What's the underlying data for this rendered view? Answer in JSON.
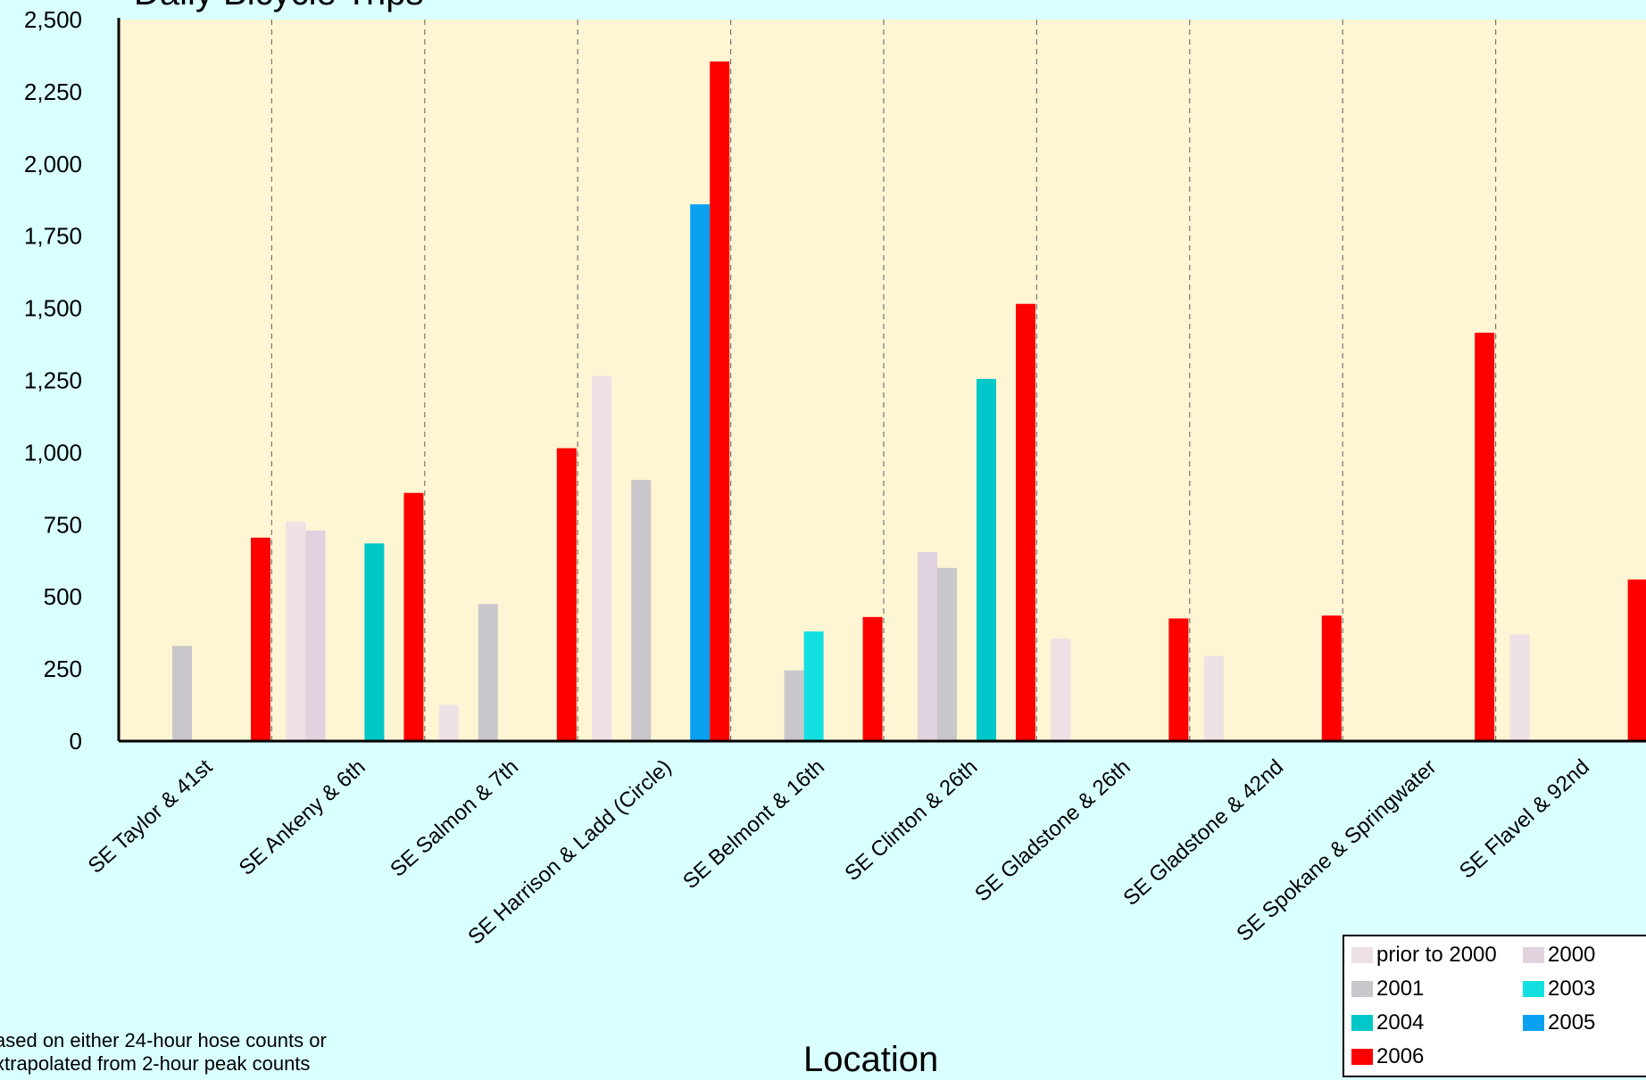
{
  "title_partial": "Daily Bicycle Trips",
  "x_axis_title": "Location",
  "note": [
    "ased on either 24-hour hose counts or",
    "xtrapolated from 2-hour peak counts"
  ],
  "colors": {
    "background": "#d9ffff",
    "plot_area": "#fdf5d3",
    "prior_to_2000": "#ede1e6",
    "y2000": "#e0d3df",
    "y2001": "#c9c7cb",
    "y2003": "#12e0e0",
    "y2004": "#00c8c8",
    "y2005": "#0aa0f0",
    "y2006": "#ff0000"
  },
  "legend": {
    "items": [
      {
        "label": "prior to 2000",
        "color": "#ede1e6"
      },
      {
        "label": "2000",
        "color": "#e0d3df"
      },
      {
        "label": "2001",
        "color": "#c9c7cb"
      },
      {
        "label": "2003",
        "color": "#12e0e0"
      },
      {
        "label": "2004",
        "color": "#00c8c8"
      },
      {
        "label": "2005",
        "color": "#0aa0f0"
      },
      {
        "label": "2006",
        "color": "#ff0000"
      }
    ]
  },
  "chart_data": {
    "type": "bar",
    "title": "",
    "xlabel": "Location",
    "ylabel": "",
    "ylim": [
      0,
      2500
    ],
    "yticks": [
      "0",
      "250",
      "500",
      "750",
      "1,000",
      "1,250",
      "1,500",
      "1,750",
      "2,000",
      "2,250",
      "2,500"
    ],
    "grid": "vertical dashed separators between categories",
    "legend_position": "bottom-right",
    "categories": [
      "SE Taylor & 41st",
      "SE Ankeny & 6th",
      "SE Salmon & 7th",
      "SE Harrison & Ladd (Circle)",
      "SE Belmont & 16th",
      "SE Clinton & 26th",
      "SE Gladstone & 26th",
      "SE Gladstone & 42nd",
      "SE Spokane & Springwater",
      "SE Flavel & 92nd"
    ],
    "series": [
      {
        "name": "prior to 2000",
        "values": [
          null,
          760,
          125,
          1265,
          null,
          null,
          355,
          295,
          null,
          370
        ]
      },
      {
        "name": "2000",
        "values": [
          null,
          730,
          null,
          null,
          null,
          655,
          null,
          null,
          null,
          null
        ]
      },
      {
        "name": "2001",
        "values": [
          330,
          null,
          475,
          905,
          245,
          600,
          null,
          null,
          null,
          null
        ]
      },
      {
        "name": "2003",
        "values": [
          null,
          null,
          null,
          null,
          380,
          null,
          null,
          null,
          null,
          null
        ]
      },
      {
        "name": "2004",
        "values": [
          null,
          685,
          null,
          null,
          null,
          1255,
          null,
          null,
          null,
          null
        ]
      },
      {
        "name": "2005",
        "values": [
          null,
          null,
          null,
          1860,
          null,
          null,
          null,
          null,
          null,
          null
        ]
      },
      {
        "name": "2006",
        "values": [
          705,
          860,
          1015,
          2355,
          430,
          1515,
          425,
          435,
          1415,
          560
        ]
      }
    ]
  }
}
